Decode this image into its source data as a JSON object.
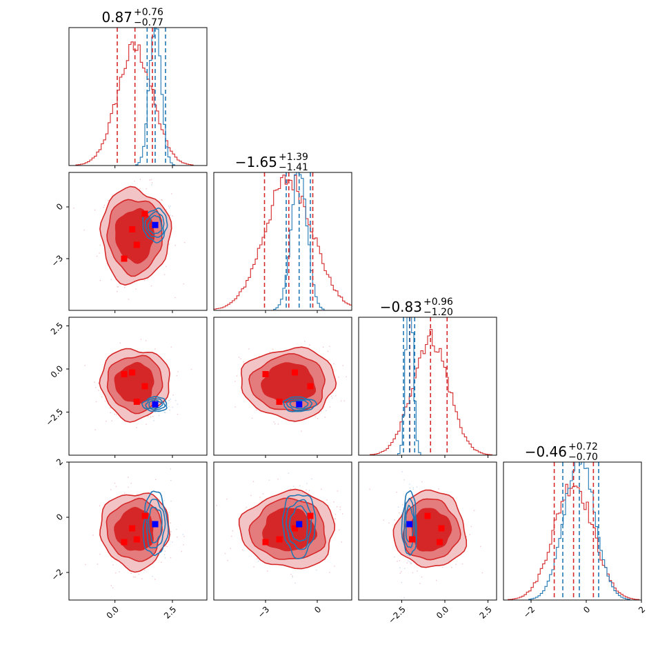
{
  "colors": {
    "prior": "#d62728",
    "posterior": "#1f77b4",
    "marker_red": "#ff0000",
    "marker_blue": "#0000ff",
    "fill_levels": [
      "#d62728",
      "#e47c7e",
      "#f3c4c5"
    ]
  },
  "chart_data": {
    "type": "corner",
    "n_params": 4,
    "axis_ranges": [
      [
        -2.0,
        4.0
      ],
      [
        -6.0,
        2.0
      ],
      [
        -5.0,
        3.0
      ],
      [
        -3.0,
        2.0
      ]
    ],
    "ticks": [
      {
        "values": [
          0.0,
          2.5
        ],
        "labels": [
          "0.0",
          "2.5"
        ]
      },
      {
        "values": [
          -3,
          0
        ],
        "labels": [
          "−3",
          "0"
        ]
      },
      {
        "values": [
          -2.5,
          0.0,
          2.5
        ],
        "labels": [
          "−2.5",
          "0.0",
          "2.5"
        ]
      },
      {
        "values": [
          -2,
          0,
          2
        ],
        "labels": [
          "−2",
          "0",
          "2"
        ]
      }
    ],
    "titles": [
      {
        "value": "0.87",
        "plus": "+0.76",
        "minus": "−0.77"
      },
      {
        "value": "−1.65",
        "plus": "+1.39",
        "minus": "−1.41"
      },
      {
        "value": "−0.83",
        "plus": "+0.96",
        "minus": "−1.20"
      },
      {
        "value": "−0.46",
        "plus": "+0.72",
        "minus": "−0.70"
      }
    ],
    "red_distribution": {
      "center": [
        0.87,
        -1.65,
        -0.83,
        -0.46
      ],
      "spread": [
        0.77,
        1.4,
        1.05,
        0.71
      ]
    },
    "blue_distribution": {
      "center": [
        1.75,
        -1.05,
        -2.05,
        -0.25
      ],
      "spread": [
        0.25,
        0.45,
        0.2,
        0.55
      ]
    },
    "quantile_lines": {
      "red": [
        [
          0.1,
          0.87,
          1.63
        ],
        [
          -3.06,
          -1.65,
          -0.26
        ],
        [
          -2.03,
          -0.83,
          0.13
        ],
        [
          -1.16,
          -0.46,
          0.26
        ]
      ],
      "blue": [
        [
          1.4,
          1.75,
          2.2
        ],
        [
          -1.8,
          -1.05,
          -0.4
        ],
        [
          -2.4,
          -2.05,
          -1.75
        ],
        [
          -0.85,
          -0.25,
          0.45
        ]
      ]
    },
    "red_markers": [
      [
        0.4,
        -3.0,
        -0.3,
        -0.9
      ],
      [
        0.75,
        -1.3,
        -0.2,
        -0.4
      ],
      [
        0.95,
        -2.2,
        -1.9,
        -0.8
      ],
      [
        1.3,
        -0.4,
        -1.0,
        0.05
      ]
    ],
    "blue_marker": [
      1.75,
      -1.05,
      -2.05,
      -0.25
    ]
  }
}
